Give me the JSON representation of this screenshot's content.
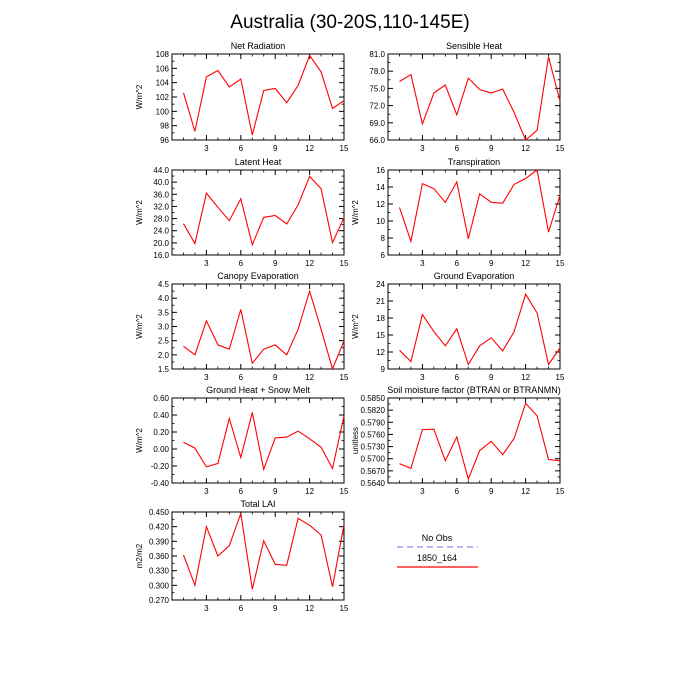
{
  "title": "Australia (30-20S,110-145E)",
  "legend": {
    "entries": [
      {
        "label": "No Obs",
        "color": "#8c8cf0",
        "dashed": true
      },
      {
        "label": "1850_164",
        "color": "#ff0000",
        "dashed": false
      }
    ]
  },
  "chart_data": [
    {
      "type": "line",
      "title": "Net Radiation",
      "ylabel": "W/m^2",
      "xlabel": "",
      "xlim": [
        0,
        15
      ],
      "ylim": [
        96,
        108
      ],
      "xticks": [
        3,
        6,
        9,
        12,
        15
      ],
      "yticks": [
        "96",
        "98",
        "100",
        "102",
        "104",
        "106",
        "108"
      ],
      "x": [
        1,
        2,
        3,
        4,
        5,
        6,
        7,
        8,
        9,
        10,
        11,
        12,
        13,
        14,
        15
      ],
      "series": [
        {
          "name": "1850_164",
          "values": [
            102.6,
            97.2,
            104.8,
            105.7,
            103.4,
            104.5,
            96.7,
            102.9,
            103.2,
            101.2,
            103.6,
            107.8,
            105.5,
            100.4,
            101.5
          ]
        }
      ]
    },
    {
      "type": "line",
      "title": "Sensible Heat",
      "ylabel": "",
      "xlabel": "",
      "xlim": [
        0,
        15
      ],
      "ylim": [
        66.0,
        81.0
      ],
      "xticks": [
        3,
        6,
        9,
        12,
        15
      ],
      "yticks": [
        "66.0",
        "69.0",
        "72.0",
        "75.0",
        "78.0",
        "81.0"
      ],
      "x": [
        1,
        2,
        3,
        4,
        5,
        6,
        7,
        8,
        9,
        10,
        11,
        12,
        13,
        14,
        15
      ],
      "series": [
        {
          "name": "1850_164",
          "values": [
            76.2,
            77.4,
            68.8,
            74.2,
            75.6,
            70.4,
            76.8,
            74.8,
            74.2,
            74.9,
            70.8,
            66.0,
            67.7,
            80.5,
            72.8
          ]
        }
      ]
    },
    {
      "type": "line",
      "title": "Latent Heat",
      "ylabel": "W/m^2",
      "xlabel": "",
      "xlim": [
        0,
        15
      ],
      "ylim": [
        16.0,
        44.0
      ],
      "xticks": [
        3,
        6,
        9,
        12,
        15
      ],
      "yticks": [
        "16.0",
        "20.0",
        "24.0",
        "28.0",
        "32.0",
        "36.0",
        "40.0",
        "44.0"
      ],
      "x": [
        1,
        2,
        3,
        4,
        5,
        6,
        7,
        8,
        9,
        10,
        11,
        12,
        13,
        14,
        15
      ],
      "series": [
        {
          "name": "1850_164",
          "values": [
            26.3,
            19.8,
            36.4,
            31.7,
            27.3,
            34.5,
            19.4,
            28.4,
            29.0,
            26.2,
            32.5,
            41.9,
            37.8,
            20.1,
            28.3
          ]
        }
      ]
    },
    {
      "type": "line",
      "title": "Transpiration",
      "ylabel": "W/m^2",
      "xlabel": "",
      "xlim": [
        0,
        15
      ],
      "ylim": [
        6,
        16
      ],
      "xticks": [
        3,
        6,
        9,
        12,
        15
      ],
      "yticks": [
        "6",
        "8",
        "10",
        "12",
        "14",
        "16"
      ],
      "x": [
        1,
        2,
        3,
        4,
        5,
        6,
        7,
        8,
        9,
        10,
        11,
        12,
        13,
        14,
        15
      ],
      "series": [
        {
          "name": "1850_164",
          "values": [
            11.6,
            7.6,
            14.4,
            13.8,
            12.2,
            14.6,
            7.9,
            13.2,
            12.2,
            12.1,
            14.3,
            15.0,
            16.0,
            8.7,
            13.0
          ]
        }
      ]
    },
    {
      "type": "line",
      "title": "Canopy Evaporation",
      "ylabel": "W/m^2",
      "xlabel": "",
      "xlim": [
        0,
        15
      ],
      "ylim": [
        1.5,
        4.5
      ],
      "xticks": [
        3,
        6,
        9,
        12,
        15
      ],
      "yticks": [
        "1.5",
        "2.0",
        "2.5",
        "3.0",
        "3.5",
        "4.0",
        "4.5"
      ],
      "x": [
        1,
        2,
        3,
        4,
        5,
        6,
        7,
        8,
        9,
        10,
        11,
        12,
        13,
        14,
        15
      ],
      "series": [
        {
          "name": "1850_164",
          "values": [
            2.3,
            2.0,
            3.2,
            2.35,
            2.2,
            3.6,
            1.7,
            2.2,
            2.35,
            2.0,
            2.9,
            4.25,
            2.9,
            1.5,
            2.5
          ]
        }
      ]
    },
    {
      "type": "line",
      "title": "Ground Evaporation",
      "ylabel": "W/m^2",
      "xlabel": "",
      "xlim": [
        0,
        15
      ],
      "ylim": [
        9,
        24
      ],
      "xticks": [
        3,
        6,
        9,
        12,
        15
      ],
      "yticks": [
        "9",
        "12",
        "15",
        "18",
        "21",
        "24"
      ],
      "x": [
        1,
        2,
        3,
        4,
        5,
        6,
        7,
        8,
        9,
        10,
        11,
        12,
        13,
        14,
        15
      ],
      "series": [
        {
          "name": "1850_164",
          "values": [
            12.3,
            10.3,
            18.6,
            15.6,
            13.1,
            16.1,
            9.8,
            13.1,
            14.5,
            12.2,
            15.6,
            22.2,
            18.9,
            9.8,
            12.7
          ]
        }
      ]
    },
    {
      "type": "line",
      "title": "Ground Heat + Snow Melt",
      "ylabel": "W/m^2",
      "xlabel": "",
      "xlim": [
        0,
        15
      ],
      "ylim": [
        -0.4,
        0.6
      ],
      "xticks": [
        3,
        6,
        9,
        12,
        15
      ],
      "yticks": [
        "-0.40",
        "-0.20",
        "0.00",
        "0.20",
        "0.40",
        "0.60"
      ],
      "x": [
        1,
        2,
        3,
        4,
        5,
        6,
        7,
        8,
        9,
        10,
        11,
        12,
        13,
        14,
        15
      ],
      "series": [
        {
          "name": "1850_164",
          "values": [
            0.08,
            0.01,
            -0.21,
            -0.17,
            0.36,
            -0.1,
            0.43,
            -0.24,
            0.13,
            0.14,
            0.21,
            0.12,
            0.02,
            -0.23,
            0.39
          ]
        }
      ]
    },
    {
      "type": "line",
      "title": "Soil moisture factor (BTRAN or BTRANMN)",
      "ylabel": "unitless",
      "xlabel": "",
      "xlim": [
        0,
        15
      ],
      "ylim": [
        0.564,
        0.585
      ],
      "xticks": [
        3,
        6,
        9,
        12,
        15
      ],
      "yticks": [
        "0.5640",
        "0.5670",
        "0.5700",
        "0.5730",
        "0.5760",
        "0.5790",
        "0.5820",
        "0.5850"
      ],
      "x": [
        1,
        2,
        3,
        4,
        5,
        6,
        7,
        8,
        9,
        10,
        11,
        12,
        13,
        14,
        15
      ],
      "series": [
        {
          "name": "1850_164",
          "values": [
            0.5688,
            0.5676,
            0.5772,
            0.5773,
            0.5695,
            0.5754,
            0.565,
            0.572,
            0.5743,
            0.571,
            0.575,
            0.5837,
            0.5806,
            0.5698,
            0.5695
          ]
        }
      ]
    },
    {
      "type": "line",
      "title": "Total LAI",
      "ylabel": "m2/m2",
      "xlabel": "",
      "xlim": [
        0,
        15
      ],
      "ylim": [
        0.27,
        0.45
      ],
      "xticks": [
        3,
        6,
        9,
        12,
        15
      ],
      "yticks": [
        "0.270",
        "0.300",
        "0.330",
        "0.360",
        "0.390",
        "0.420",
        "0.450"
      ],
      "x": [
        1,
        2,
        3,
        4,
        5,
        6,
        7,
        8,
        9,
        10,
        11,
        12,
        13,
        14,
        15
      ],
      "series": [
        {
          "name": "1850_164",
          "values": [
            0.362,
            0.3,
            0.42,
            0.36,
            0.381,
            0.447,
            0.292,
            0.391,
            0.343,
            0.341,
            0.437,
            0.423,
            0.403,
            0.297,
            0.424
          ]
        }
      ]
    }
  ]
}
